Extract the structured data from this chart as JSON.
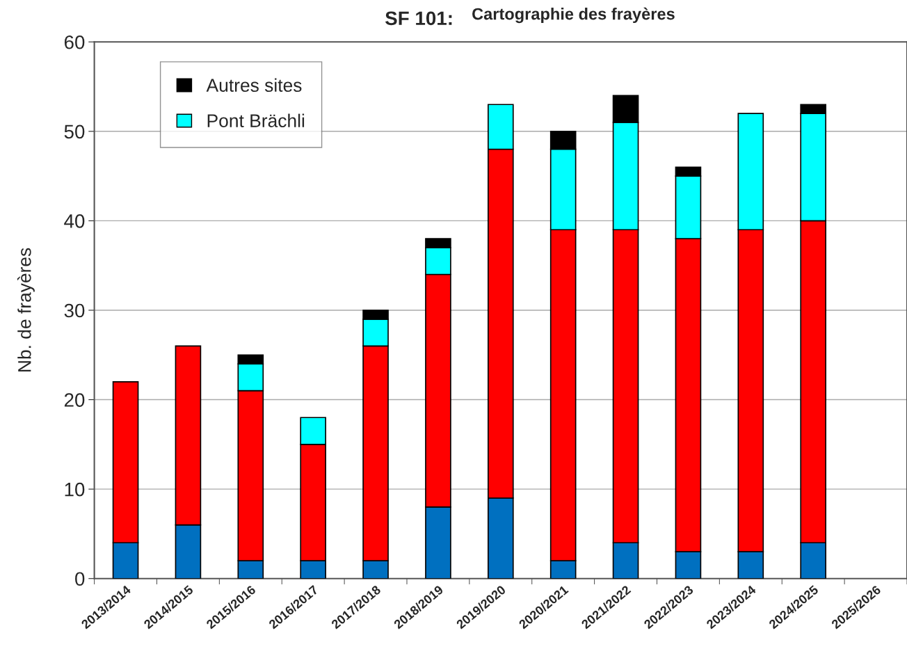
{
  "chart_data": {
    "type": "bar",
    "title": "SF 101:",
    "subtitle": "Cartographie des frayères",
    "ylabel": "Nb. de frayères",
    "categories": [
      "2013/2014",
      "2014/2015",
      "2015/2016",
      "2016/2017",
      "2017/2018",
      "2018/2019",
      "2019/2020",
      "2020/2021",
      "2021/2022",
      "2022/2023",
      "2023/2024",
      "2024/2025",
      "2025/2026"
    ],
    "stacked": true,
    "series": [
      {
        "color": "#0070c0",
        "values": [
          4,
          6,
          2,
          2,
          2,
          8,
          9,
          2,
          4,
          3,
          3,
          4,
          null
        ]
      },
      {
        "color": "#ff0000",
        "values": [
          18,
          20,
          19,
          13,
          24,
          26,
          39,
          37,
          35,
          35,
          36,
          36,
          null
        ]
      },
      {
        "name": "Pont Brächli",
        "color": "#00ffff",
        "values": [
          null,
          null,
          3,
          3,
          3,
          3,
          5,
          9,
          12,
          7,
          13,
          12,
          null
        ]
      },
      {
        "name": "Autres sites",
        "color": "#000000",
        "values": [
          null,
          null,
          1,
          null,
          1,
          1,
          null,
          2,
          3,
          1,
          null,
          1,
          null
        ]
      }
    ],
    "ylim": [
      0,
      60
    ],
    "yticks": [
      0,
      10,
      20,
      30,
      40,
      50,
      60
    ],
    "grid": "y",
    "legend": "top left"
  }
}
